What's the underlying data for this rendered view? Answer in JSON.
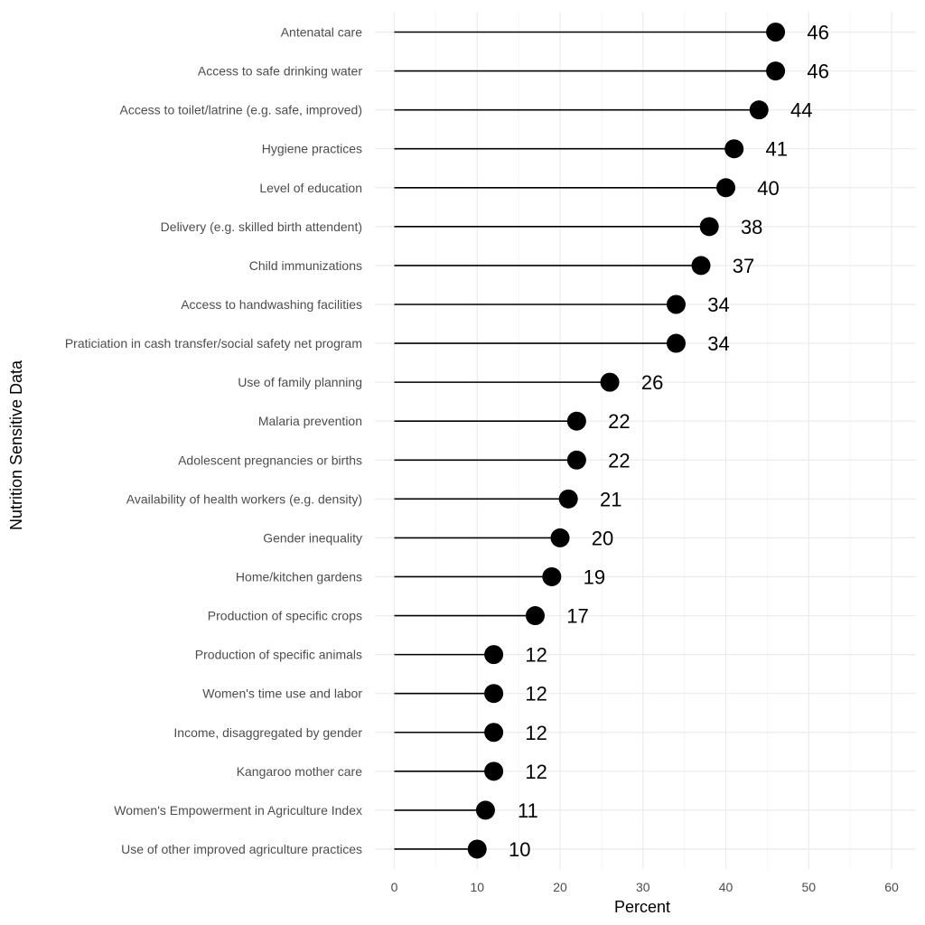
{
  "chart_data": {
    "type": "lollipop",
    "xlabel": "Percent",
    "ylabel": "Nutrition Sensitive Data",
    "xlim": [
      0,
      60
    ],
    "x_ticks": [
      0,
      10,
      20,
      30,
      40,
      50,
      60
    ],
    "grid": true,
    "legend": "none",
    "categories": [
      "Antenatal care",
      "Access to safe drinking water",
      "Access to toilet/latrine (e.g. safe, improved)",
      "Hygiene practices",
      "Level of education",
      "Delivery (e.g. skilled birth attendent)",
      "Child immunizations",
      "Access to handwashing facilities",
      "Praticiation in cash transfer/social safety net program",
      "Use of family planning",
      "Malaria prevention",
      "Adolescent pregnancies or births",
      "Availability of health workers (e.g. density)",
      "Gender inequality",
      "Home/kitchen gardens",
      "Production of specific crops",
      "Production of specific animals",
      "Women's time use and labor",
      "Income, disaggregated by gender",
      "Kangaroo mother care",
      "Women's Empowerment in Agriculture Index",
      "Use of other improved agriculture practices"
    ],
    "values": [
      46,
      46,
      44,
      41,
      40,
      38,
      37,
      34,
      34,
      26,
      22,
      22,
      21,
      20,
      19,
      17,
      12,
      12,
      12,
      12,
      11,
      10
    ],
    "colors": {
      "marker": "#000000",
      "grid_major": "#ebebeb",
      "grid_minor": "#f5f5f5"
    }
  }
}
